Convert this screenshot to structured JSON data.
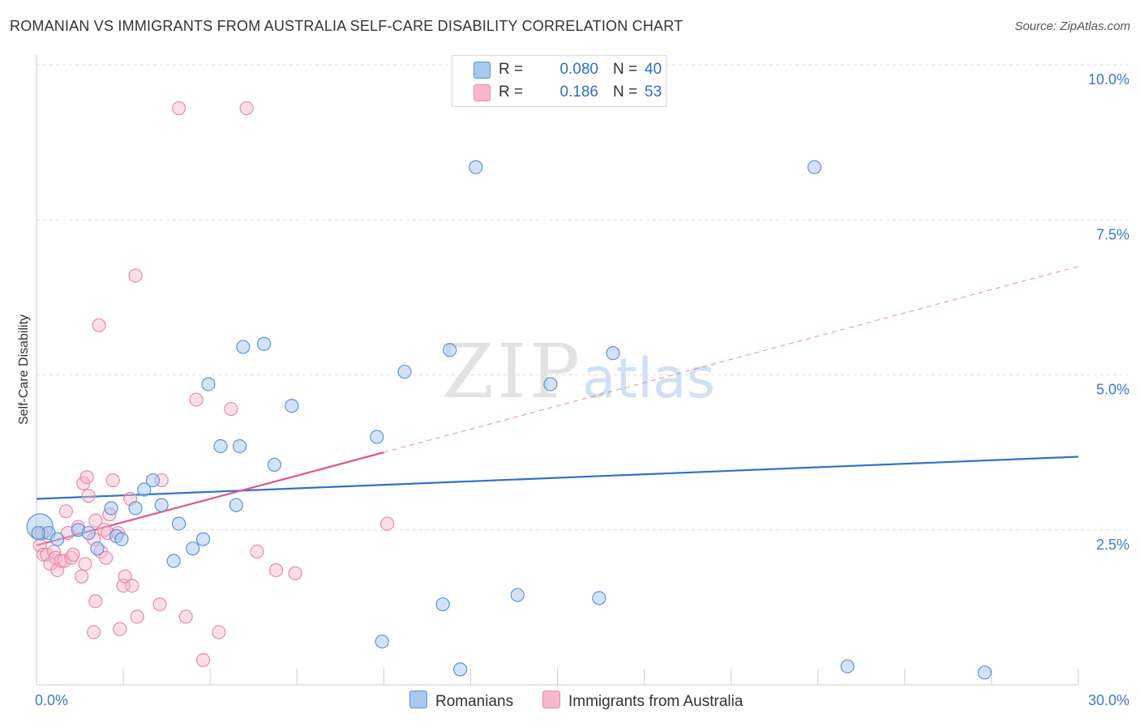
{
  "title": "ROMANIAN VS IMMIGRANTS FROM AUSTRALIA SELF-CARE DISABILITY CORRELATION CHART",
  "source": "Source: ZipAtlas.com",
  "watermark": {
    "zip": "ZIP",
    "atlas": "atlas"
  },
  "colors": {
    "blue_fill": "#a8c8f0",
    "blue_stroke": "#5b93d6",
    "blue_line": "#2e72c9",
    "pink_fill": "#f7b8cb",
    "pink_stroke": "#e88aa8",
    "pink_line": "#e05585",
    "axis_label": "#3d7ac8",
    "grid": "#dcdcdc"
  },
  "legend": {
    "rows": [
      {
        "r_label": "R =",
        "r_value": "0.080",
        "n_label": "N =",
        "n_value": "40"
      },
      {
        "r_label": "R =",
        "r_value": "0.186",
        "n_label": "N =",
        "n_value": "53"
      }
    ]
  },
  "bottom_legend": {
    "series1": "Romanians",
    "series2": "Immigrants from Australia"
  },
  "chart_data": {
    "type": "scatter",
    "title": "ROMANIAN VS IMMIGRANTS FROM AUSTRALIA SELF-CARE DISABILITY CORRELATION CHART",
    "xlabel": "",
    "ylabel": "Self-Care Disability",
    "xlim": [
      0,
      30
    ],
    "ylim": [
      0,
      10.3
    ],
    "x_tick_labels": [
      "0.0%",
      "30.0%"
    ],
    "y_ticks": [
      2.5,
      5.0,
      7.5,
      10.0
    ],
    "y_tick_labels": [
      "2.5%",
      "5.0%",
      "7.5%",
      "10.0%"
    ],
    "grid": true,
    "series": [
      {
        "name": "Romanians",
        "R": 0.08,
        "N": 40,
        "trend": {
          "x": [
            0,
            30
          ],
          "y": [
            3.0,
            3.68
          ]
        },
        "points": [
          [
            0.1,
            2.55
          ],
          [
            0.35,
            2.45
          ],
          [
            0.6,
            2.35
          ],
          [
            1.2,
            2.5
          ],
          [
            1.5,
            2.45
          ],
          [
            1.75,
            2.2
          ],
          [
            2.15,
            2.85
          ],
          [
            2.3,
            2.4
          ],
          [
            2.45,
            2.35
          ],
          [
            2.85,
            2.85
          ],
          [
            3.1,
            3.15
          ],
          [
            3.35,
            3.3
          ],
          [
            3.6,
            2.9
          ],
          [
            3.95,
            2.0
          ],
          [
            4.1,
            2.6
          ],
          [
            4.5,
            2.2
          ],
          [
            4.8,
            2.35
          ],
          [
            4.95,
            4.85
          ],
          [
            5.3,
            3.85
          ],
          [
            5.75,
            2.9
          ],
          [
            5.85,
            3.85
          ],
          [
            5.95,
            5.45
          ],
          [
            6.55,
            5.5
          ],
          [
            6.85,
            3.55
          ],
          [
            7.35,
            4.5
          ],
          [
            9.8,
            4.0
          ],
          [
            9.95,
            0.7
          ],
          [
            10.6,
            5.05
          ],
          [
            11.7,
            1.3
          ],
          [
            11.9,
            5.4
          ],
          [
            12.2,
            0.25
          ],
          [
            12.65,
            8.35
          ],
          [
            13.85,
            1.45
          ],
          [
            14.8,
            4.85
          ],
          [
            16.2,
            1.4
          ],
          [
            16.6,
            5.35
          ],
          [
            22.4,
            8.35
          ],
          [
            23.35,
            0.3
          ],
          [
            27.3,
            0.2
          ],
          [
            0.05,
            2.45
          ]
        ]
      },
      {
        "name": "Immigrants from Australia",
        "R": 0.186,
        "N": 53,
        "trend_solid": {
          "x": [
            0,
            10.0
          ],
          "y": [
            2.25,
            3.75
          ]
        },
        "trend_dashed": {
          "x": [
            10.0,
            30.0
          ],
          "y": [
            3.75,
            6.75
          ]
        },
        "points": [
          [
            0.05,
            2.45
          ],
          [
            0.1,
            2.25
          ],
          [
            0.2,
            2.1
          ],
          [
            0.3,
            2.1
          ],
          [
            0.4,
            1.95
          ],
          [
            0.5,
            2.15
          ],
          [
            0.55,
            2.05
          ],
          [
            0.6,
            1.85
          ],
          [
            0.7,
            2.0
          ],
          [
            0.8,
            2.0
          ],
          [
            0.85,
            2.8
          ],
          [
            0.9,
            2.45
          ],
          [
            1.0,
            2.05
          ],
          [
            1.05,
            2.1
          ],
          [
            1.2,
            2.55
          ],
          [
            1.3,
            1.75
          ],
          [
            1.35,
            3.25
          ],
          [
            1.4,
            1.95
          ],
          [
            1.45,
            3.35
          ],
          [
            1.5,
            3.05
          ],
          [
            1.65,
            2.35
          ],
          [
            1.7,
            2.65
          ],
          [
            1.65,
            0.85
          ],
          [
            1.7,
            1.35
          ],
          [
            1.8,
            5.8
          ],
          [
            1.85,
            2.15
          ],
          [
            1.95,
            2.5
          ],
          [
            2.0,
            2.05
          ],
          [
            2.05,
            2.45
          ],
          [
            2.1,
            2.75
          ],
          [
            2.2,
            3.3
          ],
          [
            2.35,
            2.45
          ],
          [
            2.4,
            0.9
          ],
          [
            2.5,
            1.6
          ],
          [
            2.55,
            1.75
          ],
          [
            2.7,
            3.0
          ],
          [
            2.75,
            1.6
          ],
          [
            2.85,
            6.6
          ],
          [
            2.9,
            1.1
          ],
          [
            3.6,
            3.3
          ],
          [
            3.55,
            1.3
          ],
          [
            4.1,
            9.3
          ],
          [
            4.3,
            1.1
          ],
          [
            4.6,
            4.6
          ],
          [
            4.8,
            0.4
          ],
          [
            5.25,
            0.85
          ],
          [
            5.6,
            4.45
          ],
          [
            6.05,
            9.3
          ],
          [
            6.35,
            2.15
          ],
          [
            6.9,
            1.85
          ],
          [
            7.45,
            1.8
          ],
          [
            10.1,
            2.6
          ],
          [
            0.15,
            2.45
          ]
        ]
      }
    ]
  }
}
